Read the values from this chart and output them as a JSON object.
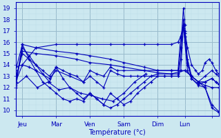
{
  "xlabel": "Température (°c)",
  "bg_color": "#cce8f0",
  "grid_major_color": "#99bbcc",
  "grid_minor_color": "#bbdde8",
  "line_color": "#0000bb",
  "xlim": [
    0,
    150
  ],
  "ylim": [
    9.5,
    19.5
  ],
  "yticks": [
    10,
    11,
    12,
    13,
    14,
    15,
    16,
    17,
    18,
    19
  ],
  "day_positions": [
    5,
    30,
    55,
    80,
    105,
    125,
    145
  ],
  "day_labels": [
    "Jeu",
    "Mar",
    "Ven",
    "Sam",
    "Dim",
    "Lun",
    ""
  ],
  "series": [
    {
      "x": [
        0,
        5,
        15,
        30,
        45,
        55,
        70,
        80,
        95,
        105,
        115,
        120,
        122,
        124,
        125,
        127,
        130,
        133,
        135,
        138,
        140,
        143,
        145,
        148,
        150
      ],
      "y": [
        12.5,
        14.0,
        15.5,
        15.8,
        15.8,
        15.8,
        15.8,
        15.8,
        15.8,
        15.8,
        15.8,
        16.0,
        16.5,
        17.2,
        17.0,
        15.5,
        14.0,
        13.5,
        13.2,
        13.5,
        14.2,
        14.5,
        14.2,
        13.5,
        13.2
      ]
    },
    {
      "x": [
        0,
        5,
        15,
        30,
        45,
        55,
        70,
        80,
        95,
        105,
        115,
        120,
        122,
        124,
        125,
        127,
        130,
        135,
        140,
        145,
        148,
        150
      ],
      "y": [
        12.0,
        15.8,
        15.5,
        15.2,
        15.0,
        14.8,
        14.5,
        14.2,
        13.8,
        13.5,
        13.5,
        13.5,
        16.5,
        17.5,
        16.8,
        14.5,
        13.0,
        12.5,
        13.0,
        13.5,
        13.2,
        13.0
      ]
    },
    {
      "x": [
        0,
        5,
        15,
        30,
        45,
        55,
        70,
        80,
        95,
        105,
        115,
        120,
        122,
        124,
        125,
        127,
        130,
        135,
        140,
        145,
        148,
        150
      ],
      "y": [
        12.5,
        15.2,
        15.0,
        14.8,
        14.5,
        14.2,
        14.0,
        13.8,
        13.5,
        13.3,
        13.2,
        13.2,
        15.5,
        19.0,
        17.5,
        14.2,
        12.8,
        12.3,
        12.5,
        12.8,
        12.5,
        12.3
      ]
    },
    {
      "x": [
        0,
        5,
        10,
        15,
        20,
        25,
        30,
        35,
        40,
        45,
        50,
        55,
        60,
        65,
        70,
        75,
        80,
        85,
        90,
        95,
        100,
        105,
        110,
        115,
        120,
        122,
        124,
        125,
        127,
        130,
        135,
        140,
        145,
        148,
        150
      ],
      "y": [
        12.8,
        15.0,
        14.5,
        14.0,
        13.5,
        13.0,
        13.8,
        13.5,
        13.2,
        13.0,
        12.5,
        13.0,
        12.5,
        12.0,
        13.5,
        13.2,
        13.0,
        13.0,
        13.0,
        13.0,
        13.0,
        13.0,
        13.0,
        13.0,
        13.0,
        14.5,
        18.0,
        16.5,
        14.0,
        13.0,
        12.5,
        12.5,
        12.8,
        12.5,
        12.3
      ]
    },
    {
      "x": [
        0,
        5,
        10,
        15,
        20,
        25,
        30,
        35,
        40,
        45,
        50,
        55,
        60,
        65,
        70,
        75,
        80,
        85,
        90,
        95,
        100,
        105,
        110,
        115,
        120,
        122,
        124,
        125,
        127,
        130,
        135,
        140,
        145,
        150
      ],
      "y": [
        12.5,
        15.5,
        14.8,
        14.0,
        13.2,
        12.5,
        13.8,
        12.8,
        12.0,
        11.5,
        11.0,
        11.5,
        11.0,
        10.5,
        11.5,
        11.0,
        10.5,
        10.8,
        11.5,
        12.0,
        12.5,
        13.0,
        13.0,
        13.0,
        13.0,
        13.5,
        17.5,
        16.0,
        13.5,
        12.8,
        12.2,
        12.0,
        10.2,
        9.8
      ]
    },
    {
      "x": [
        0,
        5,
        10,
        15,
        20,
        25,
        30,
        35,
        40,
        45,
        50,
        55,
        60,
        65,
        70,
        75,
        80,
        85,
        90,
        95,
        100,
        105,
        115,
        125,
        130,
        135,
        140,
        145,
        150
      ],
      "y": [
        13.5,
        15.8,
        14.5,
        13.5,
        12.5,
        12.0,
        11.5,
        11.0,
        10.8,
        11.0,
        10.8,
        11.5,
        11.0,
        10.5,
        10.2,
        10.5,
        11.0,
        11.5,
        12.0,
        12.5,
        13.0,
        13.2,
        13.2,
        13.5,
        13.0,
        12.5,
        12.0,
        10.5,
        9.9
      ]
    },
    {
      "x": [
        0,
        5,
        10,
        15,
        25,
        30,
        40,
        50,
        55,
        60,
        65,
        70,
        75,
        80,
        95,
        105,
        115,
        125,
        130,
        135,
        140,
        145,
        150
      ],
      "y": [
        13.8,
        14.0,
        13.8,
        13.5,
        12.8,
        13.5,
        13.0,
        12.5,
        13.5,
        13.2,
        13.0,
        13.8,
        13.5,
        13.5,
        13.5,
        13.5,
        13.5,
        13.5,
        13.0,
        12.5,
        12.2,
        12.0,
        12.0
      ]
    },
    {
      "x": [
        0,
        8,
        16,
        24,
        32,
        40,
        48,
        56,
        64,
        72,
        80,
        88,
        96
      ],
      "y": [
        12.2,
        13.0,
        12.0,
        12.5,
        11.8,
        12.0,
        11.5,
        11.3,
        11.0,
        10.8,
        11.5,
        12.5,
        13.2
      ]
    }
  ]
}
